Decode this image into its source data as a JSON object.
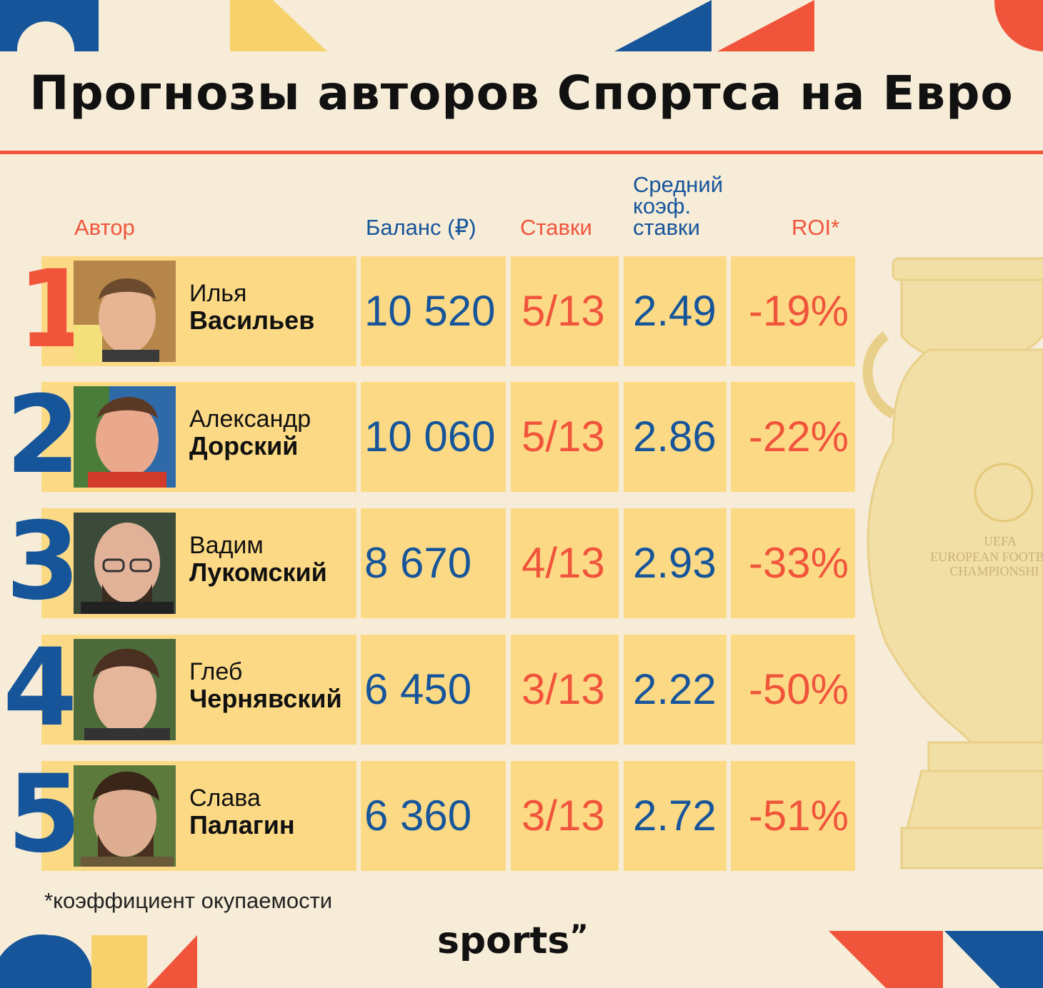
{
  "title": "Прогнозы авторов Спортса на Евро",
  "headers": {
    "author": "Автор",
    "balance": "Баланс (₽)",
    "bets": "Ставки",
    "avg_odds": [
      "Средний",
      "коэф.",
      "ставки"
    ],
    "roi": "ROI*"
  },
  "rows": [
    {
      "rank": "1",
      "first": "Илья",
      "last": "Васильев",
      "balance": "10 520",
      "bets": "5/13",
      "odds": "2.49",
      "roi": "-19%"
    },
    {
      "rank": "2",
      "first": "Александр",
      "last": "Дорский",
      "balance": "10 060",
      "bets": "5/13",
      "odds": "2.86",
      "roi": "-22%"
    },
    {
      "rank": "3",
      "first": "Вадим",
      "last": "Лукомский",
      "balance": "8 670",
      "bets": "4/13",
      "odds": "2.93",
      "roi": "-33%"
    },
    {
      "rank": "4",
      "first": "Глеб",
      "last": "Чернявский",
      "balance": "6 450",
      "bets": "3/13",
      "odds": "2.22",
      "roi": "-50%"
    },
    {
      "rank": "5",
      "first": "Слава",
      "last": "Палагин",
      "balance": "6 360",
      "bets": "3/13",
      "odds": "2.72",
      "roi": "-51%"
    }
  ],
  "trophy_text": [
    "UEFA",
    "EUROPEAN FOOTB",
    "CHAMPIONSHI"
  ],
  "footnote": "*коэффициент окупаемости",
  "logo": "sports",
  "colors": {
    "background": "#f6ecd7",
    "red": "#f0553c",
    "blue": "#17559b",
    "yellow": "#f7d26c",
    "cell": "#fcda85"
  }
}
